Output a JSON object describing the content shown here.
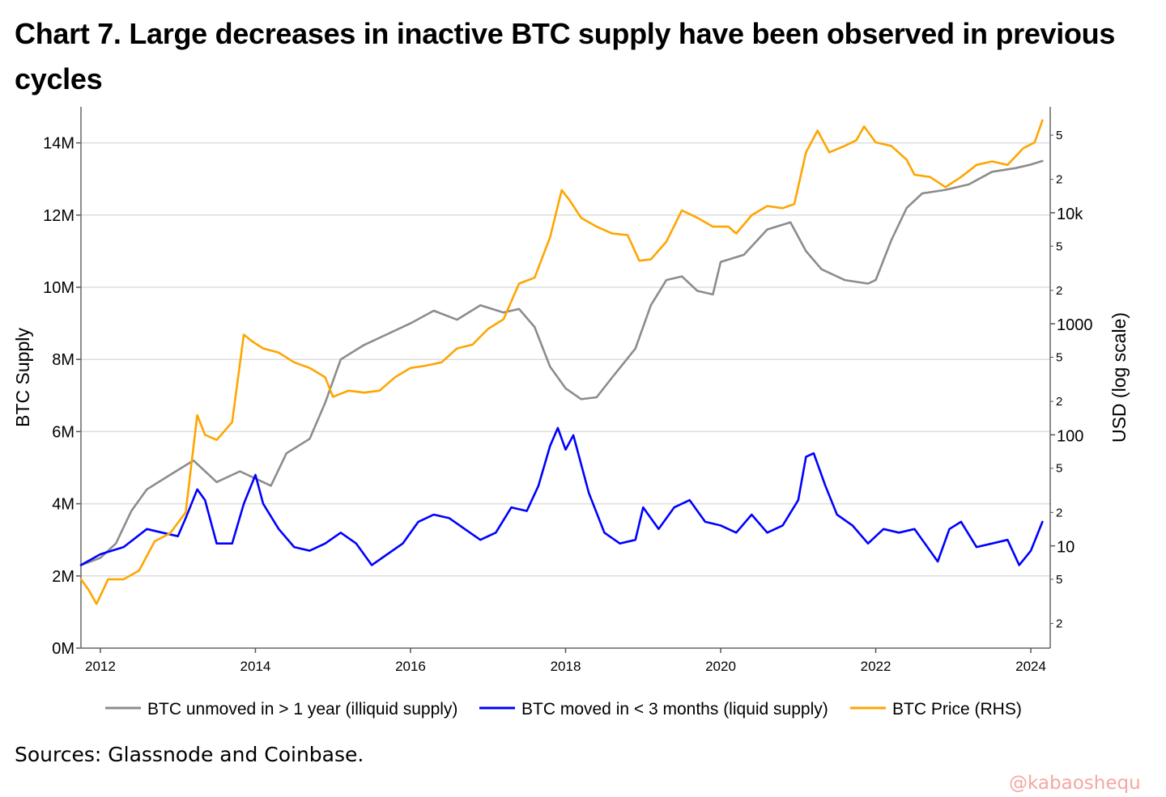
{
  "title": "Chart 7. Large decreases in inactive BTC supply have been observed in previous cycles",
  "source": "Sources: Glassnode and Coinbase.",
  "watermark": "@kabaoshequ",
  "chart_data": {
    "type": "line",
    "title": "Chart 7. Large decreases in inactive BTC supply have been observed in previous cycles",
    "xlabel": "",
    "ylabel": "BTC Supply",
    "y2label": "USD (log scale)",
    "xlim": [
      2011.75,
      2024.25
    ],
    "ylim": [
      0,
      15000000
    ],
    "y2lim": [
      1.2,
      90000
    ],
    "y2scale": "log",
    "grid": true,
    "legend_position": "bottom",
    "x_ticks": [
      2012,
      2014,
      2016,
      2018,
      2020,
      2022,
      2024
    ],
    "x_tick_labels": [
      "2012",
      "2014",
      "2016",
      "2018",
      "2020",
      "2022",
      "2024"
    ],
    "y_ticks": [
      0,
      2000000,
      4000000,
      6000000,
      8000000,
      10000000,
      12000000,
      14000000
    ],
    "y_tick_labels": [
      "0M",
      "2M",
      "4M",
      "6M",
      "8M",
      "10M",
      "12M",
      "14M"
    ],
    "y2_major_ticks": [
      10,
      100,
      1000,
      10000
    ],
    "y2_major_labels": [
      "10",
      "100",
      "1000",
      "10k"
    ],
    "y2_minor_ticks": [
      2,
      5,
      20,
      50,
      200,
      500,
      2000,
      5000,
      20000,
      50000
    ],
    "y2_minor_labels": [
      "2",
      "5",
      "2",
      "5",
      "2",
      "5",
      "2",
      "5",
      "2",
      "5"
    ],
    "colors": {
      "illiquid": "#8c8c8c",
      "liquid": "#0000ff",
      "price": "#ffa500",
      "grid": "#dddddd"
    },
    "series": [
      {
        "name": "BTC unmoved in > 1 year (illiquid supply)",
        "axis": "left",
        "color": "#8c8c8c",
        "x": [
          2011.75,
          2012.0,
          2012.2,
          2012.4,
          2012.6,
          2012.9,
          2013.2,
          2013.5,
          2013.8,
          2014.0,
          2014.2,
          2014.4,
          2014.7,
          2014.9,
          2015.1,
          2015.4,
          2015.7,
          2016.0,
          2016.3,
          2016.6,
          2016.9,
          2017.2,
          2017.4,
          2017.6,
          2017.8,
          2018.0,
          2018.2,
          2018.4,
          2018.6,
          2018.9,
          2019.1,
          2019.3,
          2019.5,
          2019.7,
          2019.9,
          2020.0,
          2020.3,
          2020.6,
          2020.9,
          2021.1,
          2021.3,
          2021.6,
          2021.9,
          2022.0,
          2022.2,
          2022.4,
          2022.6,
          2022.9,
          2023.2,
          2023.5,
          2023.8,
          2024.0,
          2024.15
        ],
        "values": [
          2300000,
          2500000,
          2900000,
          3800000,
          4400000,
          4800000,
          5200000,
          4600000,
          4900000,
          4700000,
          4500000,
          5400000,
          5800000,
          6800000,
          8000000,
          8400000,
          8700000,
          9000000,
          9350000,
          9100000,
          9500000,
          9300000,
          9400000,
          8900000,
          7800000,
          7200000,
          6900000,
          6950000,
          7500000,
          8300000,
          9500000,
          10200000,
          10300000,
          9900000,
          9800000,
          10700000,
          10900000,
          11600000,
          11800000,
          11000000,
          10500000,
          10200000,
          10100000,
          10200000,
          11300000,
          12200000,
          12600000,
          12700000,
          12850000,
          13200000,
          13300000,
          13400000,
          13500000
        ]
      },
      {
        "name": "BTC moved in < 3 months (liquid supply)",
        "axis": "left",
        "color": "#0000ff",
        "x": [
          2011.75,
          2012.0,
          2012.3,
          2012.6,
          2012.8,
          2013.0,
          2013.1,
          2013.25,
          2013.35,
          2013.5,
          2013.7,
          2013.85,
          2014.0,
          2014.1,
          2014.3,
          2014.5,
          2014.7,
          2014.9,
          2015.1,
          2015.3,
          2015.5,
          2015.7,
          2015.9,
          2016.1,
          2016.3,
          2016.5,
          2016.7,
          2016.9,
          2017.1,
          2017.3,
          2017.5,
          2017.65,
          2017.8,
          2017.9,
          2018.0,
          2018.1,
          2018.3,
          2018.5,
          2018.7,
          2018.9,
          2019.0,
          2019.2,
          2019.4,
          2019.6,
          2019.8,
          2020.0,
          2020.2,
          2020.4,
          2020.6,
          2020.8,
          2021.0,
          2021.1,
          2021.2,
          2021.35,
          2021.5,
          2021.7,
          2021.9,
          2022.1,
          2022.3,
          2022.5,
          2022.7,
          2022.8,
          2022.95,
          2023.1,
          2023.3,
          2023.5,
          2023.7,
          2023.85,
          2024.0,
          2024.15
        ],
        "values": [
          2300000,
          2600000,
          2800000,
          3300000,
          3200000,
          3100000,
          3600000,
          4400000,
          4100000,
          2900000,
          2900000,
          4000000,
          4800000,
          4000000,
          3300000,
          2800000,
          2700000,
          2900000,
          3200000,
          2900000,
          2300000,
          2600000,
          2900000,
          3500000,
          3700000,
          3600000,
          3300000,
          3000000,
          3200000,
          3900000,
          3800000,
          4500000,
          5600000,
          6100000,
          5500000,
          5900000,
          4300000,
          3200000,
          2900000,
          3000000,
          3900000,
          3300000,
          3900000,
          4100000,
          3500000,
          3400000,
          3200000,
          3700000,
          3200000,
          3400000,
          4100000,
          5300000,
          5400000,
          4500000,
          3700000,
          3400000,
          2900000,
          3300000,
          3200000,
          3300000,
          2700000,
          2400000,
          3300000,
          3500000,
          2800000,
          2900000,
          3000000,
          2300000,
          2700000,
          3500000
        ]
      },
      {
        "name": "BTC Price (RHS)",
        "axis": "right",
        "color": "#ffa500",
        "x": [
          2011.75,
          2011.85,
          2011.95,
          2012.1,
          2012.3,
          2012.5,
          2012.7,
          2012.9,
          2013.1,
          2013.25,
          2013.35,
          2013.5,
          2013.7,
          2013.85,
          2013.95,
          2014.1,
          2014.3,
          2014.5,
          2014.7,
          2014.9,
          2015.0,
          2015.2,
          2015.4,
          2015.6,
          2015.8,
          2016.0,
          2016.2,
          2016.4,
          2016.6,
          2016.8,
          2017.0,
          2017.2,
          2017.4,
          2017.6,
          2017.8,
          2017.95,
          2018.05,
          2018.2,
          2018.4,
          2018.6,
          2018.8,
          2018.95,
          2019.1,
          2019.3,
          2019.5,
          2019.7,
          2019.9,
          2020.1,
          2020.2,
          2020.4,
          2020.6,
          2020.8,
          2020.95,
          2021.1,
          2021.25,
          2021.4,
          2021.6,
          2021.75,
          2021.85,
          2022.0,
          2022.2,
          2022.4,
          2022.5,
          2022.7,
          2022.9,
          2023.1,
          2023.3,
          2023.5,
          2023.7,
          2023.9,
          2024.05,
          2024.15
        ],
        "values": [
          5,
          4,
          3,
          5,
          5,
          6,
          11,
          13,
          20,
          150,
          100,
          90,
          130,
          800,
          700,
          600,
          550,
          450,
          400,
          330,
          220,
          250,
          240,
          250,
          330,
          400,
          420,
          450,
          600,
          650,
          900,
          1100,
          2300,
          2600,
          6000,
          16000,
          13000,
          9000,
          7500,
          6500,
          6300,
          3700,
          3800,
          5500,
          10500,
          9000,
          7500,
          7500,
          6500,
          9500,
          11500,
          11000,
          12000,
          35000,
          55000,
          35000,
          40000,
          45000,
          60000,
          43000,
          40000,
          30000,
          22000,
          21000,
          17000,
          21000,
          27000,
          29000,
          27000,
          38000,
          43000,
          68000
        ]
      }
    ]
  }
}
